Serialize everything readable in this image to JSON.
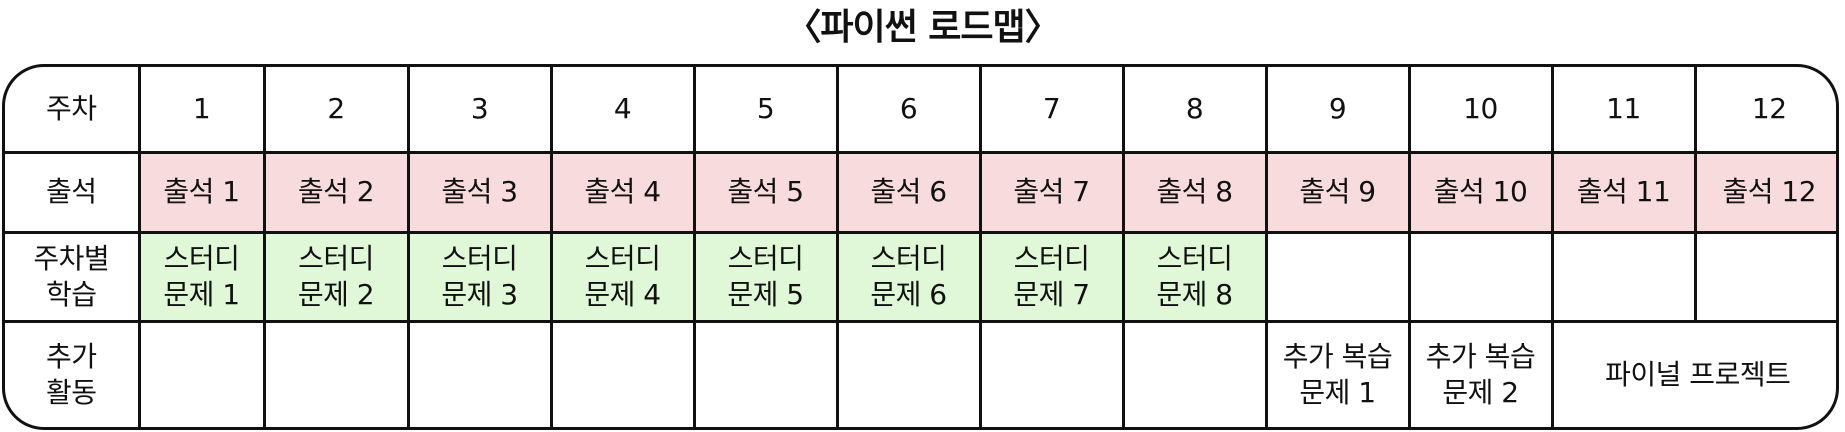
{
  "title": "〈파이썬 로드맵〉",
  "rows": {
    "week": {
      "label": "주차",
      "cells": [
        "1",
        "2",
        "3",
        "4",
        "5",
        "6",
        "7",
        "8",
        "9",
        "10",
        "11",
        "12"
      ]
    },
    "attendance": {
      "label": "출석",
      "cells": [
        "출석 1",
        "출석 2",
        "출석 3",
        "출석 4",
        "출석 5",
        "출석 6",
        "출석 7",
        "출석 8",
        "출석 9",
        "출석 10",
        "출석 11",
        "출석 12"
      ]
    },
    "weekly_study": {
      "label": "주차별\n학습",
      "cells": [
        "스터디\n문제 1",
        "스터디\n문제 2",
        "스터디\n문제 3",
        "스터디\n문제 4",
        "스터디\n문제 5",
        "스터디\n문제 6",
        "스터디\n문제 7",
        "스터디\n문제 8",
        "",
        "",
        "",
        ""
      ]
    },
    "extra_activity": {
      "label": "추가\n활동",
      "cells": [
        "",
        "",
        "",
        "",
        "",
        "",
        "",
        "",
        "추가 복습\n문제 1",
        "추가 복습\n문제 2"
      ],
      "final_project": "파이널 프로젝트"
    }
  },
  "colors": {
    "attendance_bg": "#f8dbdd",
    "study_bg": "#e0f7d8",
    "border": "#111111"
  }
}
